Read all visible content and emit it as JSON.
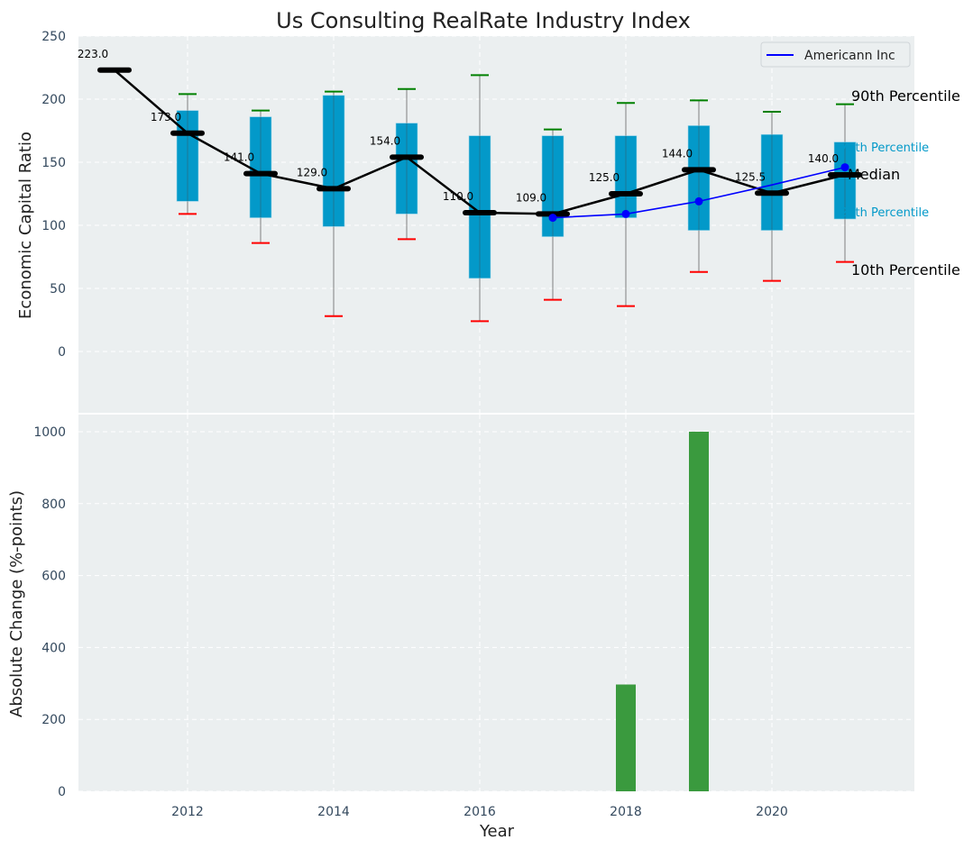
{
  "chart_data": [
    {
      "type": "box",
      "title": "Us Consulting RealRate Industry Index",
      "xlabel": "",
      "ylabel": "Economic Capital Ratio",
      "ylim": [
        -50,
        250
      ],
      "xlim": [
        2010.5,
        2021.95
      ],
      "yticks": [
        0,
        50,
        100,
        150,
        200,
        250
      ],
      "grid": true,
      "legend": {
        "position": "top-right",
        "entries": [
          {
            "label": "Americann Inc",
            "color": "#0000ff"
          }
        ]
      },
      "colors": {
        "box": "#0399c9",
        "median": "#000000",
        "p90_cap": "#008000",
        "p10_cap": "#ff0000",
        "whisker": "#808080",
        "company": "#0000ff",
        "panel_bg": "#ebeff0"
      },
      "years": [
        2011,
        2012,
        2013,
        2014,
        2015,
        2016,
        2017,
        2018,
        2019,
        2020,
        2021
      ],
      "median": [
        223.0,
        173.0,
        141.0,
        129.0,
        154.0,
        110.0,
        109.0,
        125.0,
        144.0,
        125.5,
        140.0
      ],
      "median_labels": [
        "223.0",
        "173.0",
        "141.0",
        "129.0",
        "154.0",
        "110.0",
        "109.0",
        "125.0",
        "144.0",
        "125.5",
        "140.0"
      ],
      "p90": [
        null,
        204,
        191,
        206,
        208,
        219,
        176,
        197,
        199,
        190,
        196
      ],
      "p75": [
        null,
        191,
        186,
        203,
        181,
        171,
        171,
        171,
        179,
        172,
        166
      ],
      "p25": [
        null,
        119,
        106,
        99,
        109,
        58,
        91,
        106,
        96,
        96,
        105
      ],
      "p10": [
        null,
        109,
        86,
        28,
        89,
        24,
        41,
        36,
        63,
        56,
        71
      ],
      "company": {
        "name": "Americann Inc",
        "years": [
          2017,
          2018,
          2019,
          2020,
          2021
        ],
        "values": [
          106,
          109,
          119,
          132,
          146
        ],
        "markers": [
          true,
          true,
          true,
          false,
          true
        ]
      },
      "annotations": {
        "p90": "90th Percentile",
        "p75": "75th Percentile",
        "median": "Median",
        "p25": "25th Percentile",
        "p10": "10th Percentile"
      }
    },
    {
      "type": "bar",
      "xlabel": "Year",
      "ylabel": "Absolute Change (%-points)",
      "ylim": [
        0,
        1045
      ],
      "yticks": [
        0,
        200,
        400,
        600,
        800,
        1000
      ],
      "xticks": [
        2012,
        2014,
        2016,
        2018,
        2020
      ],
      "grid": true,
      "color": "#3a9a3e",
      "x": [
        2018,
        2019
      ],
      "values": [
        297,
        1000
      ]
    }
  ]
}
